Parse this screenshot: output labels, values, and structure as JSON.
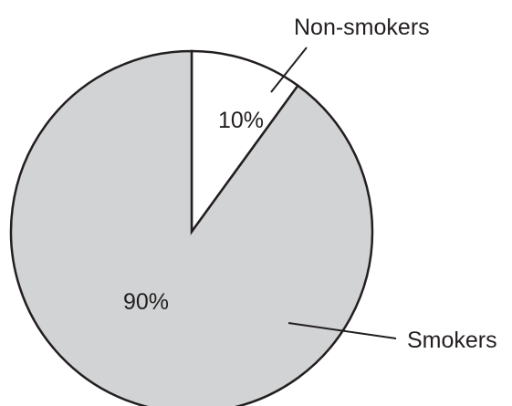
{
  "chart_data": {
    "type": "pie",
    "slices": [
      {
        "label": "Non-smokers",
        "value": 10,
        "value_label": "10%",
        "color": "#ffffff"
      },
      {
        "label": "Smokers",
        "value": 90,
        "value_label": "90%",
        "color": "#d1d3d4"
      }
    ],
    "start_angle": "12 o'clock",
    "direction": "clockwise",
    "labels": "external with leader lines",
    "stroke_color": "#231f20",
    "text_color": "#231f20"
  }
}
